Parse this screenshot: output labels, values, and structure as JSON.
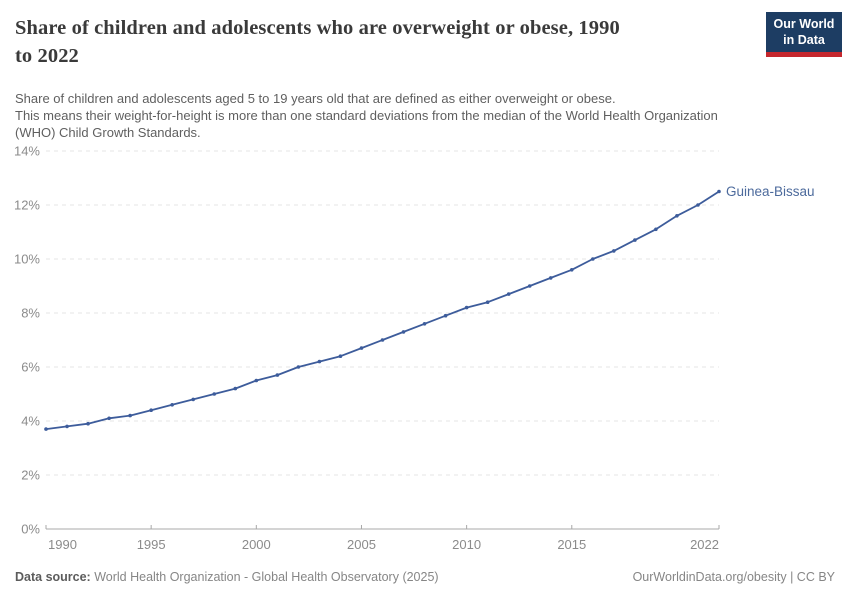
{
  "header": {
    "title_lines": [
      "Share of children and adolescents who are overweight or obese, 1990",
      "to 2022"
    ],
    "subtitle_lines": [
      "Share of children and adolescents aged 5 to 19 years old that are defined as either overweight or obese.",
      "This means their weight-for-height is more than one standard deviations from the median of the World Health Organization",
      "(WHO) Child Growth Standards."
    ],
    "logo": {
      "line1": "Our World",
      "line2": "in Data",
      "bg_color": "#1d3d63",
      "bar_color": "#c5272d"
    }
  },
  "chart_data": {
    "type": "line",
    "title": "Share of children and adolescents who are overweight or obese, 1990 to 2022",
    "xlim": [
      1990,
      2022
    ],
    "ylim": [
      0,
      14
    ],
    "xticks": [
      1990,
      1995,
      2000,
      2005,
      2010,
      2015,
      2022
    ],
    "ytick_labels": [
      "0%",
      "2%",
      "4%",
      "6%",
      "8%",
      "10%",
      "12%",
      "14%"
    ],
    "grid": "horizontal-dashed",
    "legend_position": "end-of-line",
    "series": [
      {
        "name": "Guinea-Bissau",
        "color": "#3d5c9b",
        "label_color": "#4c6a9c",
        "years": [
          1990,
          1991,
          1992,
          1993,
          1994,
          1995,
          1996,
          1997,
          1998,
          1999,
          2000,
          2001,
          2002,
          2003,
          2004,
          2005,
          2006,
          2007,
          2008,
          2009,
          2010,
          2011,
          2012,
          2013,
          2014,
          2015,
          2016,
          2017,
          2018,
          2019,
          2020,
          2021,
          2022
        ],
        "values": [
          3.7,
          3.8,
          3.9,
          4.1,
          4.2,
          4.4,
          4.6,
          4.8,
          5.0,
          5.2,
          5.5,
          5.7,
          6.0,
          6.2,
          6.4,
          6.7,
          7.0,
          7.3,
          7.6,
          7.9,
          8.2,
          8.4,
          8.7,
          9.0,
          9.3,
          9.6,
          10.0,
          10.3,
          10.7,
          11.1,
          11.6,
          12.0,
          12.5
        ]
      }
    ],
    "colors": {
      "gridline": "#e4e4e4",
      "axis": "#a8a8a8",
      "tick_label": "#8b8b8b"
    }
  },
  "footer": {
    "source_label": "Data source:",
    "source_text": " World Health Organization - Global Health Observatory (2025)",
    "url": "OurWorldinData.org/obesity",
    "license": " | CC BY"
  }
}
